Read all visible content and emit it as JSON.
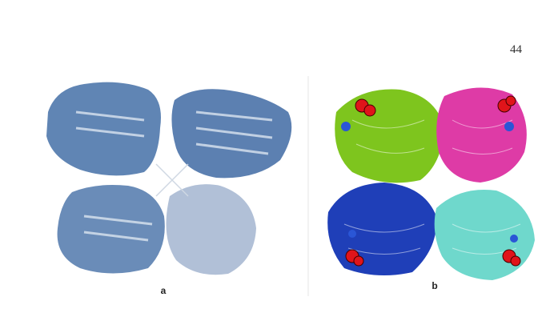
{
  "page_number": "44",
  "panels": [
    {
      "label": "a"
    },
    {
      "label": "b"
    }
  ]
}
